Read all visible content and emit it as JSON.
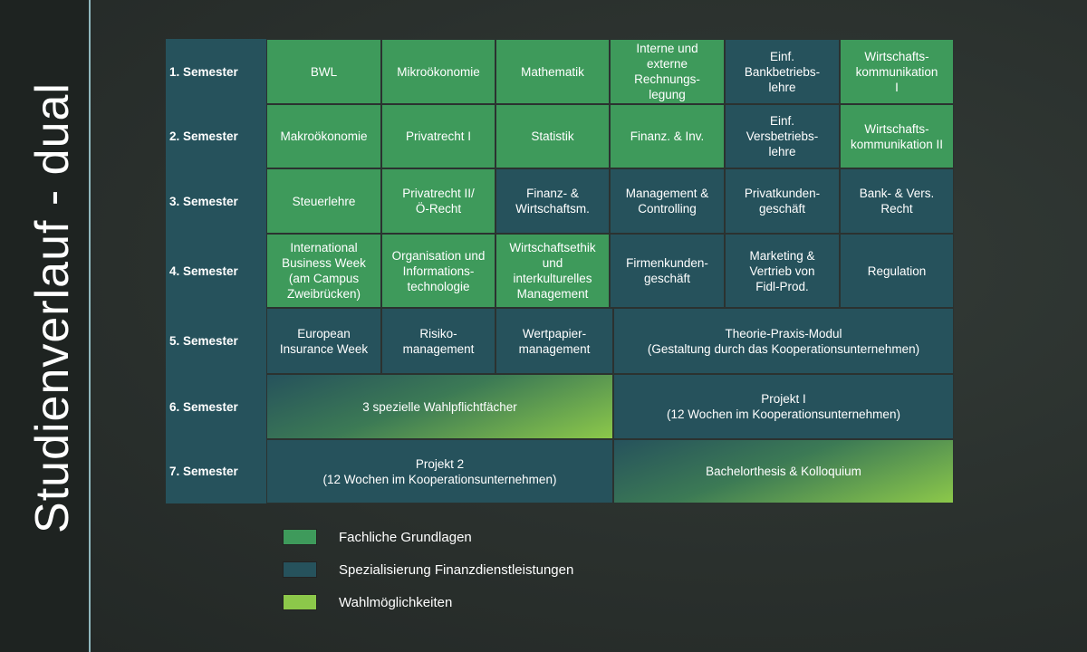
{
  "title": "Studienverlauf - dual",
  "colors": {
    "grundlagen": "#3e9a5b",
    "spezialisierung": "#26525c",
    "wahl": "#8cc84a"
  },
  "semesters": [
    "1. Semester",
    "2. Semester",
    "3. Semester",
    "4. Semester",
    "5. Semester",
    "6. Semester",
    "7. Semester"
  ],
  "modules": {
    "s1": [
      "BWL",
      "Mikroökonomie",
      "Mathematik",
      "Interne und\nexterne\nRechnungs-\nlegung",
      "Einf.\nBankbetriebs-\nlehre",
      "Wirtschafts-\nkommunikation\nI"
    ],
    "s2": [
      "Makroökonomie",
      "Privatrecht I",
      "Statistik",
      "Finanz. & Inv.",
      "Einf.\nVersbetriebs-\nlehre",
      "Wirtschafts-\nkommunikation II"
    ],
    "s3": [
      "Steuerlehre",
      "Privatrecht II/\nÖ-Recht",
      "Finanz- &\nWirtschaftsm.",
      "Management &\nControlling",
      "Privatkunden-\ngeschäft",
      "Bank- & Vers.\nRecht"
    ],
    "s4": [
      "International\nBusiness Week\n(am Campus\nZweibrücken)",
      "Organisation und\nInformations-\ntechnologie",
      "Wirtschaftsethik\nund\ninterkulturelles\nManagement",
      "Firmenkunden-\ngeschäft",
      "Marketing &\nVertrieb von\nFidl-Prod.",
      "Regulation"
    ],
    "s5": [
      "European\nInsurance Week",
      "Risiko-\nmanagement",
      "Wertpapier-\nmanagement",
      "Theorie-Praxis-Modul\n(Gestaltung durch das Kooperationsunternehmen)"
    ],
    "s6": [
      "3 spezielle Wahlpflichtfächer",
      "Projekt I\n(12 Wochen im Kooperationsunternehmen)"
    ],
    "s7": [
      "Projekt 2\n(12 Wochen im Kooperationsunternehmen)",
      "Bachelorthesis & Kolloquium"
    ]
  },
  "legend": [
    "Fachliche Grundlagen",
    "Spezialisierung Finanzdienstleistungen",
    "Wahlmöglichkeiten"
  ]
}
